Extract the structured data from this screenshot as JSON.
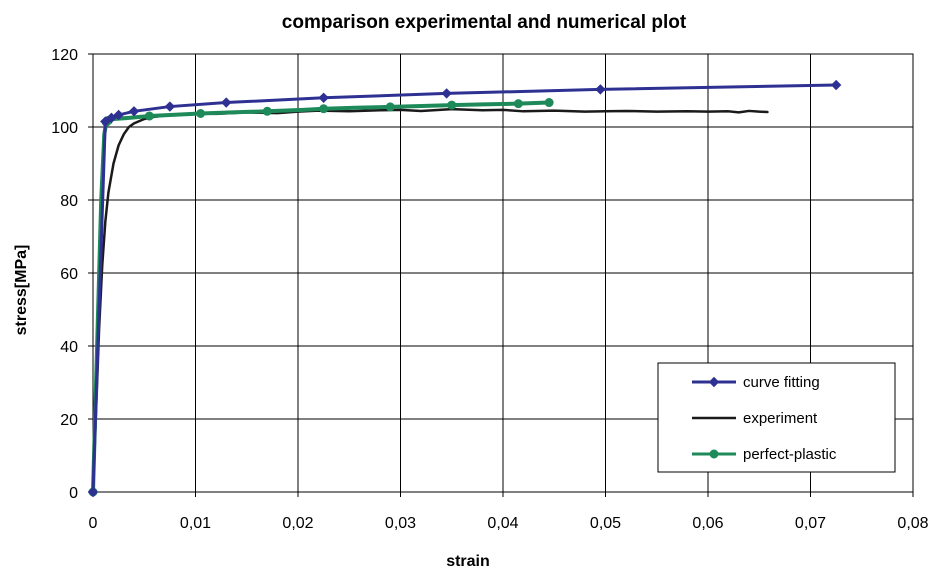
{
  "chart_data": {
    "type": "line",
    "title": "comparison  experimental and numerical plot",
    "xlabel": "strain",
    "ylabel": "stress[MPa]",
    "xlim": [
      0,
      0.08
    ],
    "ylim": [
      0,
      120
    ],
    "xticks": [
      0,
      0.01,
      0.02,
      0.03,
      0.04,
      0.05,
      0.06,
      0.07,
      0.08
    ],
    "xtick_labels": [
      "0",
      "0,01",
      "0,02",
      "0,03",
      "0,04",
      "0,05",
      "0,06",
      "0,07",
      "0,08"
    ],
    "yticks": [
      0,
      20,
      40,
      60,
      80,
      100,
      120
    ],
    "ytick_labels": [
      "0",
      "20",
      "40",
      "60",
      "80",
      "100",
      "120"
    ],
    "grid": true,
    "legend_position": "bottom-right",
    "series": [
      {
        "name": "experiment",
        "color": "#1a1a1a",
        "marker": "none",
        "x": [
          0,
          0.0003,
          0.0006,
          0.0009,
          0.0012,
          0.0015,
          0.002,
          0.0025,
          0.003,
          0.0035,
          0.004,
          0.005,
          0.006,
          0.008,
          0.01,
          0.012,
          0.015,
          0.018,
          0.02,
          0.022,
          0.025,
          0.028,
          0.03,
          0.032,
          0.035,
          0.038,
          0.04,
          0.042,
          0.045,
          0.048,
          0.05,
          0.052,
          0.055,
          0.058,
          0.06,
          0.062,
          0.063,
          0.064,
          0.065,
          0.0658
        ],
        "y": [
          0,
          22,
          45,
          62,
          74,
          82,
          90,
          95,
          98,
          100,
          101,
          102.2,
          102.8,
          103.4,
          103.7,
          103.6,
          104,
          103.8,
          104.2,
          104.5,
          104.3,
          104.6,
          104.7,
          104.4,
          104.9,
          104.6,
          104.7,
          104.3,
          104.5,
          104.2,
          104.3,
          104.4,
          104.2,
          104.3,
          104.2,
          104.3,
          104,
          104.4,
          104.2,
          104.1
        ]
      },
      {
        "name": "perfect-plastic",
        "color": "#1e8a5a",
        "marker": "circle",
        "x": [
          0,
          0.0002,
          0.0005,
          0.0008,
          0.0011,
          0.0013,
          0.0015,
          0.002,
          0.0035,
          0.0055,
          0.0075,
          0.0105,
          0.0135,
          0.017,
          0.0205,
          0.0225,
          0.026,
          0.029,
          0.0325,
          0.035,
          0.038,
          0.0415,
          0.0445
        ],
        "y": [
          0,
          20,
          50,
          80,
          98,
          101.3,
          101.8,
          102.2,
          102.5,
          103,
          103.3,
          103.7,
          104,
          104.3,
          104.7,
          105,
          105.3,
          105.5,
          105.8,
          106,
          106.2,
          106.4,
          106.7
        ],
        "marker_indices": [
          0,
          5,
          6,
          9,
          11,
          13,
          15,
          17,
          19,
          21,
          22
        ]
      },
      {
        "name": "curve fitting",
        "color": "#2e3192",
        "marker": "diamond",
        "x": [
          0,
          0.0012,
          0.0018,
          0.0025,
          0.004,
          0.0075,
          0.013,
          0.0225,
          0.0345,
          0.0495,
          0.0725
        ],
        "y": [
          0,
          101.5,
          102.5,
          103.3,
          104.3,
          105.6,
          106.7,
          108,
          109.2,
          110.3,
          111.5
        ]
      }
    ]
  }
}
